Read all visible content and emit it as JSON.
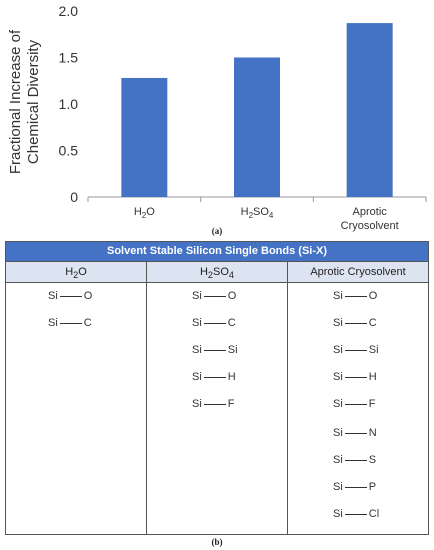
{
  "chart_data": {
    "type": "bar",
    "ylabel_line1": "Fractional Increase of",
    "ylabel_line2": "Chemical Diversity",
    "ylim": [
      0,
      2.0
    ],
    "yticks": [
      "0",
      "0.5",
      "1.0",
      "1.5",
      "2.0"
    ],
    "ytick_values": [
      0,
      0.5,
      1.0,
      1.5,
      2.0
    ],
    "categories": [
      {
        "base": "H",
        "sub": "2",
        "tail": "O"
      },
      {
        "base": "H",
        "sub": "2",
        "tail": "SO",
        "sub2": "4"
      },
      {
        "lines": [
          "Aprotic",
          "Cryosolvent"
        ]
      }
    ],
    "values": [
      1.28,
      1.5,
      1.87
    ],
    "bar_color": "#4472c4",
    "grid": false
  },
  "panel_a_label": "(a)",
  "panel_b_label": "(b)",
  "table": {
    "title": "Solvent Stable Silicon Single Bonds (Si-X)",
    "header_color": "#4472c4",
    "columns": [
      {
        "name_html": "H<sub>2</sub>O",
        "bonds": [
          {
            "a": "Si",
            "b": "O"
          },
          {
            "a": "Si",
            "b": "C"
          }
        ]
      },
      {
        "name_html": "H<sub>2</sub>SO<sub>4</sub>",
        "bonds": [
          {
            "a": "Si",
            "b": "O"
          },
          {
            "a": "Si",
            "b": "C"
          },
          {
            "a": "Si",
            "b": "Si"
          },
          {
            "a": "Si",
            "b": "H"
          },
          {
            "a": "Si",
            "b": "F"
          }
        ]
      },
      {
        "name_html": "Aprotic Cryosolvent",
        "bonds": [
          {
            "a": "Si",
            "b": "O"
          },
          {
            "a": "Si",
            "b": "C"
          },
          {
            "a": "Si",
            "b": "Si"
          },
          {
            "a": "Si",
            "b": "H"
          },
          {
            "a": "Si",
            "b": "F"
          },
          {
            "a": "Si",
            "b": "N"
          },
          {
            "a": "Si",
            "b": "S"
          },
          {
            "a": "Si",
            "b": "P"
          },
          {
            "a": "Si",
            "b": "Cl"
          }
        ]
      }
    ]
  }
}
